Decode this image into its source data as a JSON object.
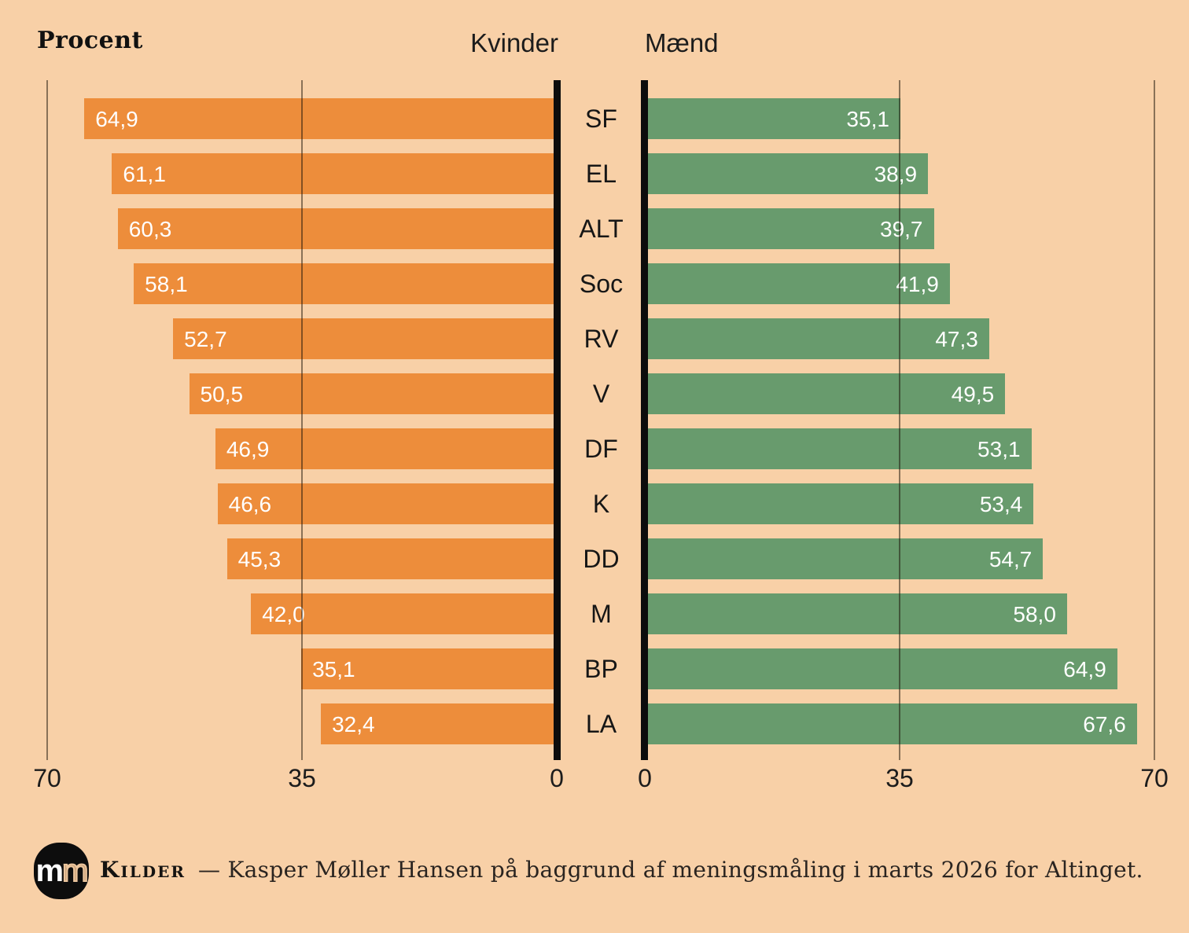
{
  "title": "Procent",
  "header": {
    "left_label": "Kvinder",
    "right_label": "Mænd"
  },
  "axis": {
    "left_ticks": {
      "t70": "70",
      "t35": "35",
      "t0": "0"
    },
    "right_ticks": {
      "t0": "0",
      "t35": "35",
      "t70": "70"
    }
  },
  "chart_data": {
    "type": "bar",
    "subtype": "diverging-horizontal-pyramid",
    "unit": "Procent",
    "xlim": [
      0,
      70
    ],
    "grid": "vertical lines at 0, 35, 70 on each side, drawn over bars",
    "categories": [
      "SF",
      "EL",
      "ALT",
      "Soc",
      "RV",
      "V",
      "DF",
      "K",
      "DD",
      "M",
      "BP",
      "LA"
    ],
    "series": [
      {
        "name": "Kvinder",
        "side": "left",
        "color": "#ed8d3b",
        "values": [
          64.9,
          61.1,
          60.3,
          58.1,
          52.7,
          50.5,
          46.9,
          46.6,
          45.3,
          42.0,
          35.1,
          32.4
        ],
        "labels": [
          "64,9",
          "61,1",
          "60,3",
          "58,1",
          "52,7",
          "50,5",
          "46,9",
          "46,6",
          "45,3",
          "42,0",
          "35,1",
          "32,4"
        ]
      },
      {
        "name": "Mænd",
        "side": "right",
        "color": "#689b6d",
        "values": [
          35.1,
          38.9,
          39.7,
          41.9,
          47.3,
          49.5,
          53.1,
          53.4,
          54.7,
          58.0,
          64.9,
          67.6
        ],
        "labels": [
          "35,1",
          "38,9",
          "39,7",
          "41,9",
          "47,3",
          "49,5",
          "53,1",
          "53,4",
          "54,7",
          "58,0",
          "64,9",
          "67,6"
        ]
      }
    ]
  },
  "footer": {
    "logo_text_1": "m",
    "logo_text_2": "m",
    "source_label": "Kilder",
    "source_text": "—  Kasper Møller Hansen på baggrund af meningsmåling i marts 2026 for Altinget."
  },
  "colors": {
    "background": "#f8d0a7",
    "bar_left": "#ed8d3b",
    "bar_right": "#689b6d",
    "axis_black": "#0c0c0c",
    "bar_value_text": "#ffffff",
    "text": "#1c1c1c"
  }
}
